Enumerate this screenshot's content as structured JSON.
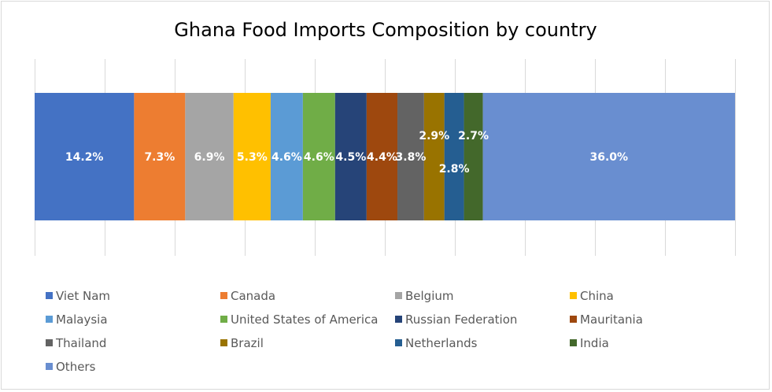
{
  "chart_data": {
    "type": "bar",
    "orientation": "horizontal",
    "stacked": true,
    "percent_stacked": true,
    "title": "Ghana Food Imports Composition by country",
    "xlim": [
      0,
      100
    ],
    "grid": true,
    "legend_position": "bottom",
    "series": [
      {
        "name": "Viet Nam",
        "value": 14.2,
        "label": "14.2%",
        "color": "#4472c4"
      },
      {
        "name": "Canada",
        "value": 7.3,
        "label": "7.3%",
        "color": "#ed7d31"
      },
      {
        "name": "Belgium",
        "value": 6.9,
        "label": "6.9%",
        "color": "#a5a5a5"
      },
      {
        "name": "China",
        "value": 5.3,
        "label": "5.3%",
        "color": "#ffc000"
      },
      {
        "name": "Malaysia",
        "value": 4.6,
        "label": "4.6%",
        "color": "#5b9bd5"
      },
      {
        "name": "United States of America",
        "value": 4.6,
        "label": "4.6%",
        "color": "#70ad47"
      },
      {
        "name": "Russian Federation",
        "value": 4.5,
        "label": "4.5%",
        "color": "#264478"
      },
      {
        "name": "Mauritania",
        "value": 4.4,
        "label": "4.4%",
        "color": "#9e480e"
      },
      {
        "name": "Thailand",
        "value": 3.8,
        "label": "3.8%",
        "color": "#636363"
      },
      {
        "name": "Brazil",
        "value": 2.9,
        "label": "2.9%",
        "color": "#997300"
      },
      {
        "name": "Netherlands",
        "value": 2.8,
        "label": "2.8%",
        "color": "#255e91"
      },
      {
        "name": "India",
        "value": 2.7,
        "label": "2.7%",
        "color": "#43682b"
      },
      {
        "name": "Others",
        "value": 36.0,
        "label": "36.0%",
        "color": "#698ed0"
      }
    ]
  }
}
